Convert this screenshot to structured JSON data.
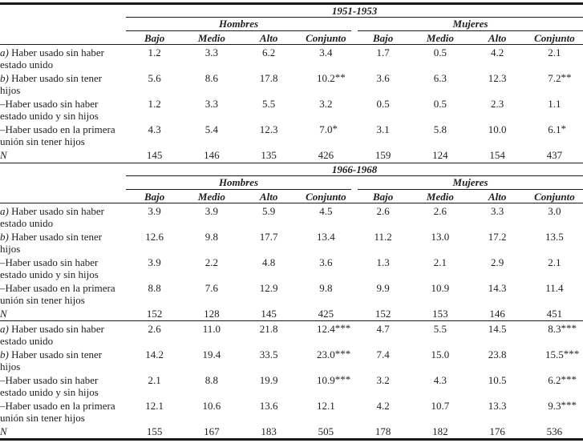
{
  "colors": {
    "line": "#1a1a1a",
    "text": "#1f1f1f",
    "background": "#ffffff"
  },
  "table": {
    "group_headers": {
      "left": "Hombres",
      "right": "Mujeres"
    },
    "column_headers": [
      "Bajo",
      "Medio",
      "Alto",
      "Conjunto",
      "Bajo",
      "Medio",
      "Alto",
      "Conjunto"
    ],
    "n_label": "N",
    "panels": [
      {
        "period": "1951-1953",
        "rows": [
          {
            "prefix": "a)",
            "label_lines": [
              "Haber usado sin haber",
              "estado unido"
            ],
            "values": [
              "1.2",
              "3.3",
              "6.2",
              "3.4",
              "1.7",
              "0.5",
              "4.2",
              "2.1"
            ]
          },
          {
            "prefix": "b)",
            "label_lines": [
              "Haber usado sin tener",
              "hijos"
            ],
            "values": [
              "5.6",
              "8.6",
              "17.8",
              "10.2**",
              "3.6",
              "6.3",
              "12.3",
              "7.2**"
            ]
          },
          {
            "prefix": "",
            "label_lines": [
              "–Haber usado sin haber",
              "estado unido y sin hijos"
            ],
            "values": [
              "1.2",
              "3.3",
              "5.5",
              "3.2",
              "0.5",
              "0.5",
              "2.3",
              "1.1"
            ]
          },
          {
            "prefix": "",
            "label_lines": [
              "–Haber usado en la primera",
              "unión sin tener hijos"
            ],
            "values": [
              "4.3",
              "5.4",
              "12.3",
              "7.0*",
              "3.1",
              "5.8",
              "10.0",
              "6.1*"
            ]
          }
        ],
        "n_values": [
          "145",
          "146",
          "135",
          "426",
          "159",
          "124",
          "154",
          "437"
        ]
      },
      {
        "period": "1966-1968",
        "rows": [
          {
            "prefix": "a)",
            "label_lines": [
              "Haber usado sin haber",
              "estado unido"
            ],
            "values": [
              "3.9",
              "3.9",
              "5.9",
              "4.5",
              "2.6",
              "2.6",
              "3.3",
              "3.0"
            ]
          },
          {
            "prefix": "b)",
            "label_lines": [
              "Haber usado sin tener",
              "hijos"
            ],
            "values": [
              "12.6",
              "9.8",
              "17.7",
              "13.4",
              "11.2",
              "13.0",
              "17.2",
              "13.5"
            ]
          },
          {
            "prefix": "",
            "label_lines": [
              "–Haber usado sin haber",
              "estado unido y sin hijos"
            ],
            "values": [
              "3.9",
              "2.2",
              "4.8",
              "3.6",
              "1.3",
              "2.1",
              "2.9",
              "2.1"
            ]
          },
          {
            "prefix": "",
            "label_lines": [
              "–Haber usado en la primera",
              "unión sin tener hijos"
            ],
            "values": [
              "8.8",
              "7.6",
              "12.9",
              "9.8",
              "9.9",
              "10.9",
              "14.3",
              "11.4"
            ]
          }
        ],
        "n_values": [
          "152",
          "128",
          "145",
          "425",
          "152",
          "153",
          "146",
          "451"
        ]
      },
      {
        "period": "",
        "rows": [
          {
            "prefix": "a)",
            "label_lines": [
              "Haber usado sin haber",
              "estado unido"
            ],
            "values": [
              "2.6",
              "11.0",
              "21.8",
              "12.4***",
              "4.7",
              "5.5",
              "14.5",
              "8.3***"
            ]
          },
          {
            "prefix": "b)",
            "label_lines": [
              "Haber usado sin tener",
              "hijos"
            ],
            "values": [
              "14.2",
              "19.4",
              "33.5",
              "23.0***",
              "7.4",
              "15.0",
              "23.8",
              "15.5***"
            ]
          },
          {
            "prefix": "",
            "label_lines": [
              "–Haber usado sin haber",
              "estado unido y sin hijos"
            ],
            "values": [
              "2.1",
              "8.8",
              "19.9",
              "10.9***",
              "3.2",
              "4.3",
              "10.5",
              "6.2***"
            ]
          },
          {
            "prefix": "",
            "label_lines": [
              "–Haber usado en la primera",
              "unión sin tener hijos"
            ],
            "values": [
              "12.1",
              "10.6",
              "13.6",
              "12.1",
              "4.2",
              "10.7",
              "13.3",
              "9.3***"
            ]
          }
        ],
        "n_values": [
          "155",
          "167",
          "183",
          "505",
          "178",
          "182",
          "176",
          "536"
        ]
      }
    ]
  }
}
